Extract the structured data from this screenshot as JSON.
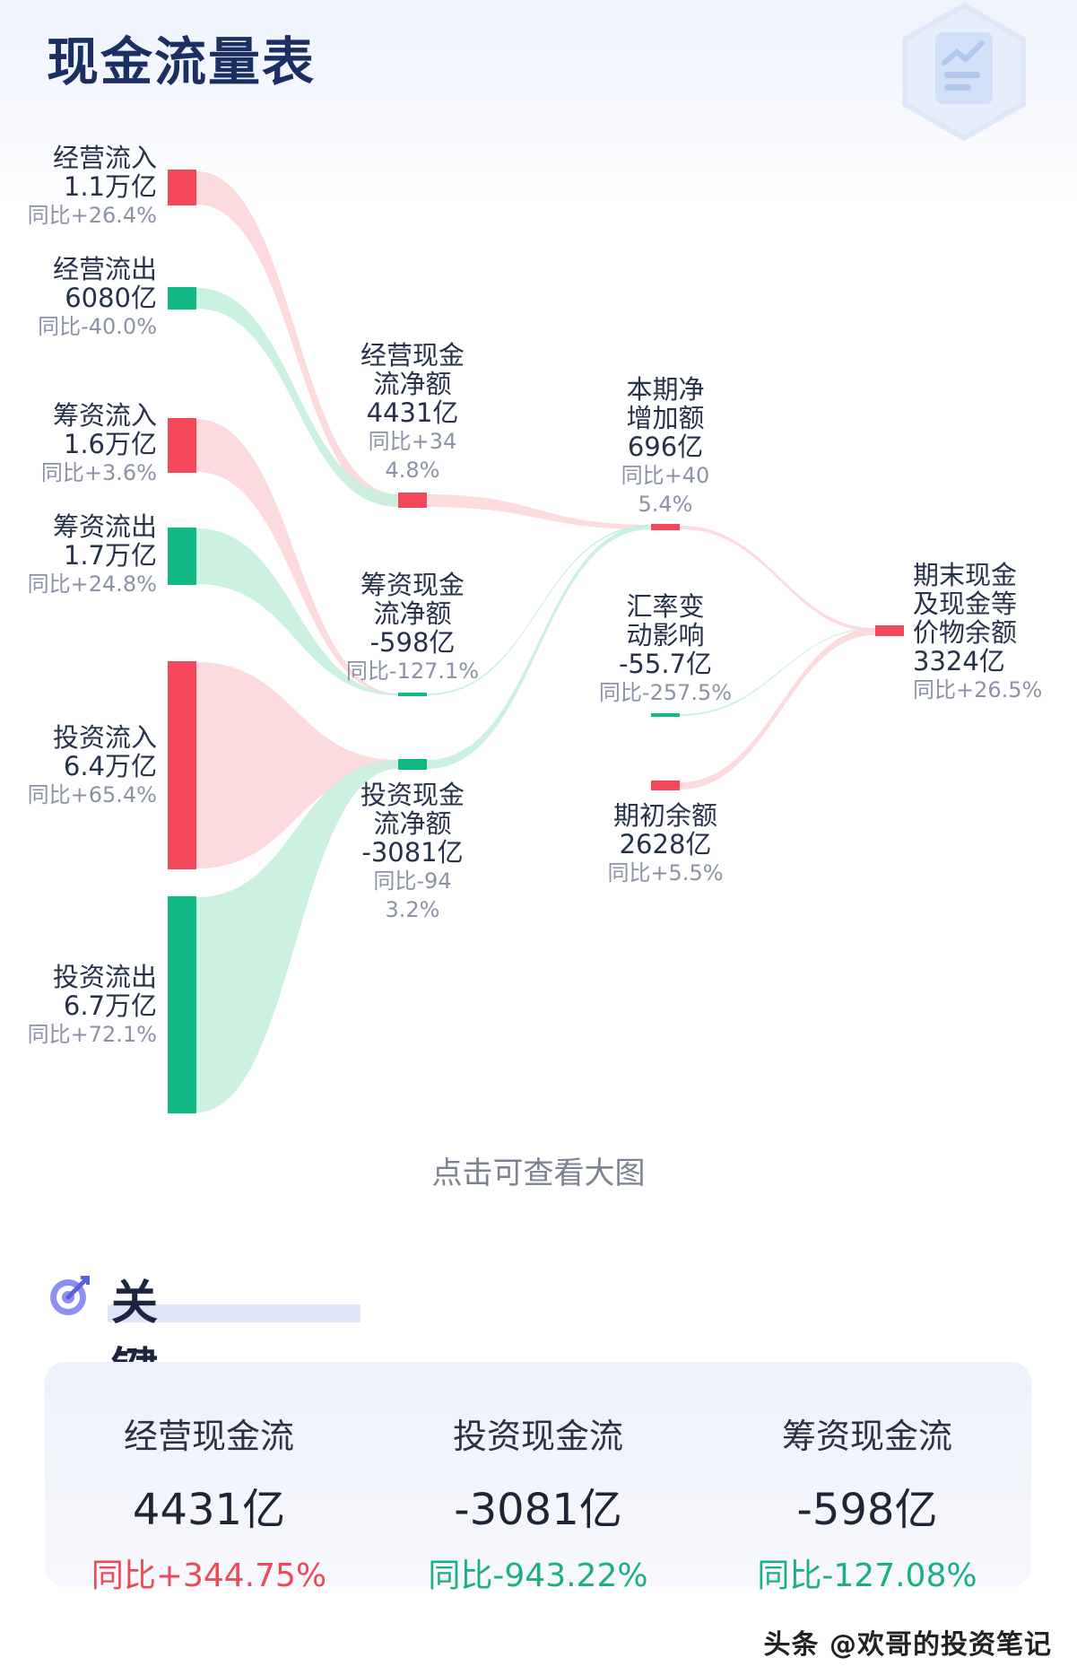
{
  "header": {
    "title": "现金流量表"
  },
  "colors": {
    "inflow": "#f2485a",
    "outflow": "#12b886",
    "inflow_band": "#fdd3d8",
    "outflow_band": "#c6efde"
  },
  "nodes": {
    "op_in": {
      "name": "经营流入",
      "value": "1.1万亿",
      "change": "同比+26.4%"
    },
    "op_out": {
      "name": "经营流出",
      "value": "6080亿",
      "change": "同比-40.0%"
    },
    "fin_in": {
      "name": "筹资流入",
      "value": "1.6万亿",
      "change": "同比+3.6%"
    },
    "fin_out": {
      "name": "筹资流出",
      "value": "1.7万亿",
      "change": "同比+24.8%"
    },
    "inv_in": {
      "name": "投资流入",
      "value": "6.4万亿",
      "change": "同比+65.4%"
    },
    "inv_out": {
      "name": "投资流出",
      "value": "6.7万亿",
      "change": "同比+72.1%"
    },
    "op_net": {
      "name1": "经营现金",
      "name2": "流净额",
      "value": "4431亿",
      "change1": "同比+34",
      "change2": "4.8%"
    },
    "fin_net": {
      "name1": "筹资现金",
      "name2": "流净额",
      "value": "-598亿",
      "change1": "同比-127.1%"
    },
    "inv_net": {
      "name1": "投资现金",
      "name2": "流净额",
      "value": "-3081亿",
      "change1": "同比-94",
      "change2": "3.2%"
    },
    "net_inc": {
      "name1": "本期净",
      "name2": "增加额",
      "value": "696亿",
      "change1": "同比+40",
      "change2": "5.4%"
    },
    "fx": {
      "name1": "汇率变",
      "name2": "动影响",
      "value": "-55.7亿",
      "change1": "同比-257.5%"
    },
    "begin": {
      "name1": "期初余额",
      "value": "2628亿",
      "change1": "同比+5.5%"
    },
    "end": {
      "name1": "期末现金",
      "name2": "及现金等",
      "name3": "价物余额",
      "value": "3324亿",
      "change1": "同比+26.5%"
    }
  },
  "hint": "点击可查看大图",
  "key_metrics": {
    "title": "关键指标",
    "items": [
      {
        "label": "经营现金流",
        "value": "4431亿",
        "change": "同比+344.75%",
        "trend": "up"
      },
      {
        "label": "投资现金流",
        "value": "-3081亿",
        "change": "同比-943.22%",
        "trend": "down"
      },
      {
        "label": "筹资现金流",
        "value": "-598亿",
        "change": "同比-127.08%",
        "trend": "down"
      }
    ]
  },
  "watermark": "头条 @欢哥的投资笔记"
}
